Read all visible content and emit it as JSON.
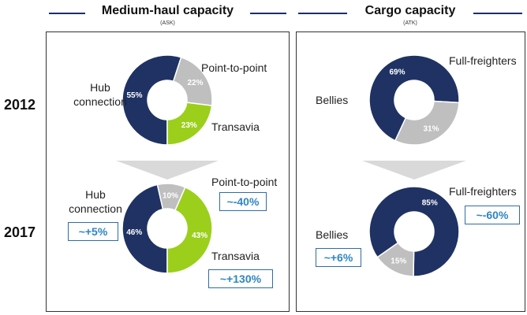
{
  "sections": {
    "medium_haul": {
      "title": "Medium-haul capacity",
      "subtitle": "(ASK)"
    },
    "cargo": {
      "title": "Cargo capacity",
      "subtitle": "(ATK)"
    }
  },
  "years": {
    "y2012": "2012",
    "y2017": "2017"
  },
  "colors": {
    "navy": "#1f3263",
    "grey": "#bfbfbf",
    "green": "#9bcf1c",
    "badge": "#2e86c1",
    "arrow": "#d9d9d9"
  },
  "chart_data": [
    {
      "type": "pie",
      "variant": "donut",
      "title": "Medium-haul capacity",
      "year": "2012",
      "categories": [
        "Hub connection",
        "Point-to-point",
        "Transavia"
      ],
      "values": [
        55,
        22,
        23
      ],
      "value_labels": [
        "55%",
        "22%",
        "23%"
      ]
    },
    {
      "type": "pie",
      "variant": "donut",
      "title": "Medium-haul capacity",
      "year": "2017",
      "categories": [
        "Hub connection",
        "Point-to-point",
        "Transavia"
      ],
      "values": [
        46,
        10,
        43
      ],
      "value_labels": [
        "46%",
        "10%",
        "43%"
      ]
    },
    {
      "type": "pie",
      "variant": "donut",
      "title": "Cargo capacity",
      "year": "2012",
      "categories": [
        "Bellies",
        "Full-freighters"
      ],
      "values": [
        69,
        31
      ],
      "value_labels": [
        "69%",
        "31%"
      ]
    },
    {
      "type": "pie",
      "variant": "donut",
      "title": "Cargo capacity",
      "year": "2017",
      "categories": [
        "Bellies",
        "Full-freighters"
      ],
      "values": [
        85,
        15
      ],
      "value_labels": [
        "85%",
        "15%"
      ]
    }
  ],
  "labels": {
    "mh2012": {
      "hub": "Hub\nconnection",
      "p2p": "Point-to-point",
      "transavia": "Transavia"
    },
    "mh2017": {
      "hub": "Hub\nconnection",
      "p2p": "Point-to-point",
      "transavia": "Transavia"
    },
    "cg2012": {
      "bellies": "Bellies",
      "ff": "Full-freighters"
    },
    "cg2017": {
      "bellies": "Bellies",
      "ff": "Full-freighters"
    }
  },
  "badges": {
    "mh_hub": "~+5%",
    "mh_p2p": "~-40%",
    "mh_transavia": "~+130%",
    "cg_bellies": "~+6%",
    "cg_ff": "~-60%"
  }
}
